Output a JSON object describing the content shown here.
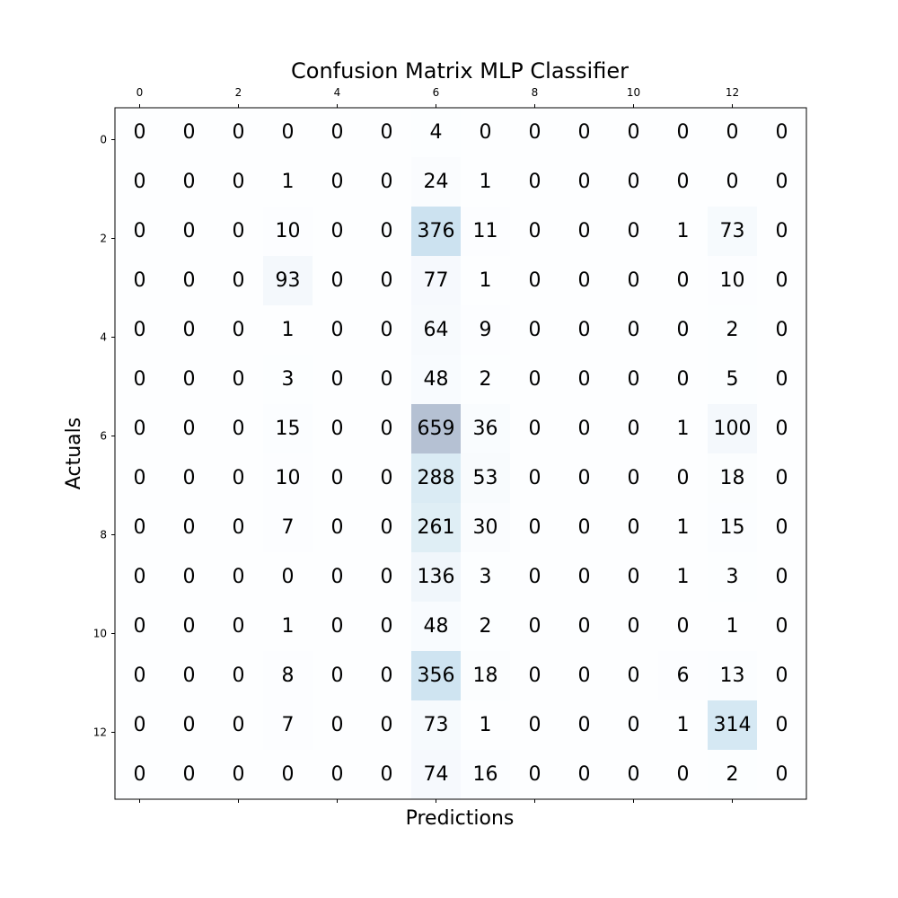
{
  "chart_data": {
    "type": "heatmap",
    "title": "Confusion Matrix MLP Classifier",
    "xlabel": "Predictions",
    "ylabel": "Actuals",
    "x_ticks": [
      "0",
      "2",
      "4",
      "6",
      "8",
      "10",
      "12"
    ],
    "y_ticks": [
      "0",
      "2",
      "4",
      "6",
      "8",
      "10",
      "12"
    ],
    "tick_values": [
      0,
      2,
      4,
      6,
      8,
      10,
      12
    ],
    "colormap": "Blues",
    "vmax": 659,
    "matrix": [
      [
        0,
        0,
        0,
        0,
        0,
        0,
        4,
        0,
        0,
        0,
        0,
        0,
        0,
        0
      ],
      [
        0,
        0,
        0,
        1,
        0,
        0,
        24,
        1,
        0,
        0,
        0,
        0,
        0,
        0
      ],
      [
        0,
        0,
        0,
        10,
        0,
        0,
        376,
        11,
        0,
        0,
        0,
        1,
        73,
        0
      ],
      [
        0,
        0,
        0,
        93,
        0,
        0,
        77,
        1,
        0,
        0,
        0,
        0,
        10,
        0
      ],
      [
        0,
        0,
        0,
        1,
        0,
        0,
        64,
        9,
        0,
        0,
        0,
        0,
        2,
        0
      ],
      [
        0,
        0,
        0,
        3,
        0,
        0,
        48,
        2,
        0,
        0,
        0,
        0,
        5,
        0
      ],
      [
        0,
        0,
        0,
        15,
        0,
        0,
        659,
        36,
        0,
        0,
        0,
        1,
        100,
        0
      ],
      [
        0,
        0,
        0,
        10,
        0,
        0,
        288,
        53,
        0,
        0,
        0,
        0,
        18,
        0
      ],
      [
        0,
        0,
        0,
        7,
        0,
        0,
        261,
        30,
        0,
        0,
        0,
        1,
        15,
        0
      ],
      [
        0,
        0,
        0,
        0,
        0,
        0,
        136,
        3,
        0,
        0,
        0,
        1,
        3,
        0
      ],
      [
        0,
        0,
        0,
        1,
        0,
        0,
        48,
        2,
        0,
        0,
        0,
        0,
        1,
        0
      ],
      [
        0,
        0,
        0,
        8,
        0,
        0,
        356,
        18,
        0,
        0,
        0,
        6,
        13,
        0
      ],
      [
        0,
        0,
        0,
        7,
        0,
        0,
        73,
        1,
        0,
        0,
        0,
        1,
        314,
        0
      ],
      [
        0,
        0,
        0,
        0,
        0,
        0,
        74,
        16,
        0,
        0,
        0,
        0,
        2,
        0
      ]
    ]
  }
}
